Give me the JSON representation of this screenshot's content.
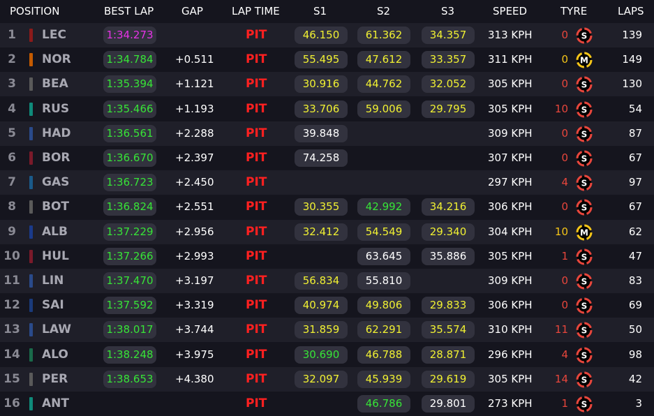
{
  "header": {
    "position": "POSITION",
    "best_lap": "BEST LAP",
    "gap": "GAP",
    "lap_time": "LAP TIME",
    "s1": "S1",
    "s2": "S2",
    "s3": "S3",
    "speed": "SPEED",
    "tyre": "TYRE",
    "laps": "LAPS"
  },
  "colors": {
    "purple": "#e632e6",
    "green": "#37e437",
    "yellow": "#f0f032",
    "pit": "#ff2020",
    "soft": "#e8463c",
    "medium": "#f5c518"
  },
  "rows": [
    {
      "pos": "1",
      "code": "LEC",
      "team": "#8b1a1a",
      "best": "1:34.273",
      "best_color": "purple",
      "gap": "",
      "lap": "PIT",
      "s1": "46.150",
      "s1c": "yellow",
      "s2": "61.362",
      "s2c": "yellow",
      "s3": "34.357",
      "s3c": "yellow",
      "speed": "313 KPH",
      "tcount": "0",
      "tc": "red",
      "tyre": "S",
      "laps": "139"
    },
    {
      "pos": "2",
      "code": "NOR",
      "team": "#c45a00",
      "best": "1:34.784",
      "best_color": "green",
      "gap": "+0.511",
      "lap": "PIT",
      "s1": "55.495",
      "s1c": "yellow",
      "s2": "47.612",
      "s2c": "yellow",
      "s3": "33.357",
      "s3c": "yellow",
      "speed": "311 KPH",
      "tcount": "0",
      "tc": "ylw",
      "tyre": "M",
      "laps": "149"
    },
    {
      "pos": "3",
      "code": "BEA",
      "team": "#5a5a5a",
      "best": "1:35.394",
      "best_color": "green",
      "gap": "+1.121",
      "lap": "PIT",
      "s1": "30.916",
      "s1c": "yellow",
      "s2": "44.762",
      "s2c": "yellow",
      "s3": "32.052",
      "s3c": "yellow",
      "speed": "305 KPH",
      "tcount": "0",
      "tc": "red",
      "tyre": "S",
      "laps": "130"
    },
    {
      "pos": "4",
      "code": "RUS",
      "team": "#0f8a7a",
      "best": "1:35.466",
      "best_color": "green",
      "gap": "+1.193",
      "lap": "PIT",
      "s1": "33.706",
      "s1c": "yellow",
      "s2": "59.006",
      "s2c": "yellow",
      "s3": "29.795",
      "s3c": "yellow",
      "speed": "305 KPH",
      "tcount": "10",
      "tc": "red",
      "tyre": "S",
      "laps": "54"
    },
    {
      "pos": "5",
      "code": "HAD",
      "team": "#2a4a8a",
      "best": "1:36.561",
      "best_color": "green",
      "gap": "+2.288",
      "lap": "PIT",
      "s1": "39.848",
      "s1c": "white",
      "s2": "",
      "s2c": "white",
      "s3": "",
      "s3c": "white",
      "speed": "309 KPH",
      "tcount": "0",
      "tc": "red",
      "tyre": "S",
      "laps": "87"
    },
    {
      "pos": "6",
      "code": "BOR",
      "team": "#7a1a2a",
      "best": "1:36.670",
      "best_color": "green",
      "gap": "+2.397",
      "lap": "PIT",
      "s1": "74.258",
      "s1c": "white",
      "s2": "",
      "s2c": "white",
      "s3": "",
      "s3c": "white",
      "speed": "307 KPH",
      "tcount": "0",
      "tc": "red",
      "tyre": "S",
      "laps": "67"
    },
    {
      "pos": "7",
      "code": "GAS",
      "team": "#1a5a8a",
      "best": "1:36.723",
      "best_color": "green",
      "gap": "+2.450",
      "lap": "PIT",
      "s1": "",
      "s1c": "white",
      "s2": "",
      "s2c": "white",
      "s3": "",
      "s3c": "white",
      "speed": "297 KPH",
      "tcount": "4",
      "tc": "red",
      "tyre": "S",
      "laps": "97"
    },
    {
      "pos": "8",
      "code": "BOT",
      "team": "#5a5a5a",
      "best": "1:36.824",
      "best_color": "green",
      "gap": "+2.551",
      "lap": "PIT",
      "s1": "30.355",
      "s1c": "yellow",
      "s2": "42.992",
      "s2c": "green",
      "s3": "34.216",
      "s3c": "yellow",
      "speed": "306 KPH",
      "tcount": "0",
      "tc": "red",
      "tyre": "S",
      "laps": "67"
    },
    {
      "pos": "9",
      "code": "ALB",
      "team": "#1a3a8a",
      "best": "1:37.229",
      "best_color": "green",
      "gap": "+2.956",
      "lap": "PIT",
      "s1": "32.412",
      "s1c": "yellow",
      "s2": "54.549",
      "s2c": "yellow",
      "s3": "29.340",
      "s3c": "yellow",
      "speed": "304 KPH",
      "tcount": "10",
      "tc": "ylw",
      "tyre": "M",
      "laps": "62"
    },
    {
      "pos": "10",
      "code": "HUL",
      "team": "#7a1a2a",
      "best": "1:37.266",
      "best_color": "green",
      "gap": "+2.993",
      "lap": "PIT",
      "s1": "",
      "s1c": "white",
      "s2": "63.645",
      "s2c": "white",
      "s3": "35.886",
      "s3c": "white",
      "speed": "305 KPH",
      "tcount": "1",
      "tc": "red",
      "tyre": "S",
      "laps": "47"
    },
    {
      "pos": "11",
      "code": "LIN",
      "team": "#2a4a8a",
      "best": "1:37.470",
      "best_color": "green",
      "gap": "+3.197",
      "lap": "PIT",
      "s1": "56.834",
      "s1c": "yellow",
      "s2": "55.810",
      "s2c": "white",
      "s3": "",
      "s3c": "white",
      "speed": "309 KPH",
      "tcount": "0",
      "tc": "red",
      "tyre": "S",
      "laps": "83"
    },
    {
      "pos": "12",
      "code": "SAI",
      "team": "#1a3a7a",
      "best": "1:37.592",
      "best_color": "green",
      "gap": "+3.319",
      "lap": "PIT",
      "s1": "40.974",
      "s1c": "yellow",
      "s2": "49.806",
      "s2c": "yellow",
      "s3": "29.833",
      "s3c": "yellow",
      "speed": "306 KPH",
      "tcount": "0",
      "tc": "red",
      "tyre": "S",
      "laps": "69"
    },
    {
      "pos": "13",
      "code": "LAW",
      "team": "#2a4a8a",
      "best": "1:38.017",
      "best_color": "green",
      "gap": "+3.744",
      "lap": "PIT",
      "s1": "31.859",
      "s1c": "yellow",
      "s2": "62.291",
      "s2c": "yellow",
      "s3": "35.574",
      "s3c": "yellow",
      "speed": "310 KPH",
      "tcount": "11",
      "tc": "red",
      "tyre": "S",
      "laps": "50"
    },
    {
      "pos": "14",
      "code": "ALO",
      "team": "#1a6a4a",
      "best": "1:38.248",
      "best_color": "green",
      "gap": "+3.975",
      "lap": "PIT",
      "s1": "30.690",
      "s1c": "green",
      "s2": "46.788",
      "s2c": "yellow",
      "s3": "28.871",
      "s3c": "yellow",
      "speed": "296 KPH",
      "tcount": "4",
      "tc": "red",
      "tyre": "S",
      "laps": "98"
    },
    {
      "pos": "15",
      "code": "PER",
      "team": "#5a5a5a",
      "best": "1:38.653",
      "best_color": "green",
      "gap": "+4.380",
      "lap": "PIT",
      "s1": "32.097",
      "s1c": "yellow",
      "s2": "45.939",
      "s2c": "yellow",
      "s3": "29.619",
      "s3c": "yellow",
      "speed": "305 KPH",
      "tcount": "14",
      "tc": "red",
      "tyre": "S",
      "laps": "42"
    },
    {
      "pos": "16",
      "code": "ANT",
      "team": "#0f8a7a",
      "best": "",
      "best_color": "green",
      "gap": "",
      "lap": "PIT",
      "s1": "",
      "s1c": "white",
      "s2": "46.786",
      "s2c": "green",
      "s3": "29.801",
      "s3c": "white",
      "speed": "273 KPH",
      "tcount": "1",
      "tc": "red",
      "tyre": "S",
      "laps": "3"
    }
  ]
}
